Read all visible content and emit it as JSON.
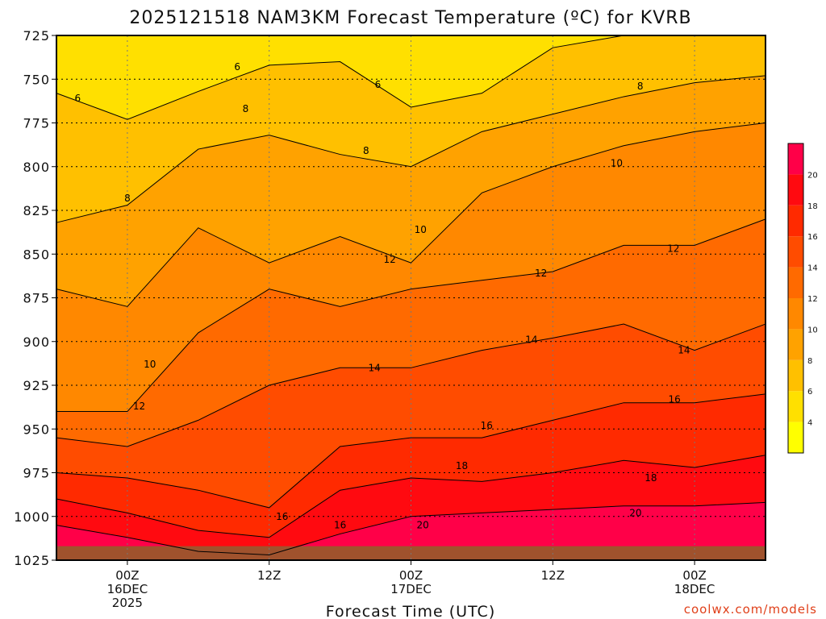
{
  "colors": {
    "band_2_4": "#ffff00",
    "band_4_6": "#ffe000",
    "band_6_8": "#ffc000",
    "band_8_10": "#ffa200",
    "band_10_12": "#ff8800",
    "band_12_14": "#ff6a00",
    "band_14_16": "#ff4c00",
    "band_16_18": "#ff2a00",
    "band_18_20": "#ff0a10",
    "band_20_22": "#ff0048",
    "ground": "#a0522d",
    "credit": "#e0401a"
  },
  "credit": "coolwx.com/models",
  "chart_data": {
    "type": "heatmap",
    "title": "2025121518 NAM3KM Forecast Temperature (ºC) for KVRB",
    "xlabel": "Forecast Time (UTC)",
    "ylabel": "",
    "x_unit": "hours from 2025-12-15 18Z",
    "xlim": [
      0,
      60
    ],
    "ylim": [
      1025,
      725
    ],
    "y_ticks": [
      "725",
      "750",
      "775",
      "800",
      "825",
      "850",
      "875",
      "900",
      "925",
      "950",
      "975",
      "1000",
      "1025"
    ],
    "x_ticks": [
      {
        "hour": 6,
        "lines": [
          "00Z",
          "16DEC",
          "2025"
        ]
      },
      {
        "hour": 18,
        "lines": [
          "12Z"
        ]
      },
      {
        "hour": 30,
        "lines": [
          "00Z",
          "17DEC"
        ]
      },
      {
        "hour": 42,
        "lines": [
          "12Z"
        ]
      },
      {
        "hour": 54,
        "lines": [
          "00Z",
          "18DEC"
        ]
      }
    ],
    "grid": true,
    "colorbar_ticks": [
      "4",
      "6",
      "8",
      "10",
      "12",
      "14",
      "16",
      "18",
      "20"
    ],
    "colorbar_range": [
      2,
      22
    ],
    "surface_pressure": 1017,
    "x": [
      0,
      6,
      12,
      18,
      24,
      30,
      36,
      42,
      48,
      54,
      60
    ],
    "contours": [
      {
        "level": 6,
        "pressure": [
          758,
          773,
          757,
          742,
          740,
          766,
          758,
          732,
          720,
          720,
          720
        ]
      },
      {
        "level": 8,
        "pressure": [
          832,
          822,
          790,
          782,
          793,
          800,
          780,
          770,
          760,
          752,
          748
        ]
      },
      {
        "level": 10,
        "pressure": [
          870,
          880,
          835,
          855,
          840,
          855,
          815,
          800,
          788,
          780,
          775
        ]
      },
      {
        "level": 12,
        "pressure": [
          940,
          940,
          895,
          870,
          880,
          870,
          865,
          860,
          845,
          845,
          830
        ]
      },
      {
        "level": 14,
        "pressure": [
          955,
          960,
          945,
          925,
          915,
          915,
          905,
          898,
          890,
          905,
          890
        ]
      },
      {
        "level": 16,
        "pressure": [
          975,
          978,
          985,
          995,
          960,
          955,
          955,
          945,
          935,
          935,
          930
        ]
      },
      {
        "level": 18,
        "pressure": [
          990,
          998,
          1008,
          1012,
          985,
          978,
          980,
          975,
          968,
          972,
          965
        ]
      },
      {
        "level": 20,
        "pressure": [
          1005,
          1012,
          1020,
          1022,
          1010,
          1000,
          998,
          996,
          994,
          994,
          992
        ]
      }
    ],
    "contour_labels": [
      {
        "text": "6",
        "x": 1.8,
        "y": 761
      },
      {
        "text": "6",
        "x": 15.3,
        "y": 743
      },
      {
        "text": "6",
        "x": 27.2,
        "y": 753
      },
      {
        "text": "8",
        "x": 16.0,
        "y": 767
      },
      {
        "text": "8",
        "x": 26.2,
        "y": 791
      },
      {
        "text": "8",
        "x": 49.4,
        "y": 754
      },
      {
        "text": "8",
        "x": 6.0,
        "y": 818
      },
      {
        "text": "10",
        "x": 30.8,
        "y": 836
      },
      {
        "text": "10",
        "x": 47.4,
        "y": 798
      },
      {
        "text": "10",
        "x": 7.9,
        "y": 913
      },
      {
        "text": "12",
        "x": 28.2,
        "y": 853
      },
      {
        "text": "12",
        "x": 41.0,
        "y": 861
      },
      {
        "text": "12",
        "x": 52.2,
        "y": 847
      },
      {
        "text": "12",
        "x": 7.0,
        "y": 937
      },
      {
        "text": "14",
        "x": 40.2,
        "y": 899
      },
      {
        "text": "14",
        "x": 26.9,
        "y": 915
      },
      {
        "text": "14",
        "x": 53.1,
        "y": 905
      },
      {
        "text": "16",
        "x": 52.3,
        "y": 933
      },
      {
        "text": "16",
        "x": 36.4,
        "y": 948
      },
      {
        "text": "16",
        "x": 19.1,
        "y": 1000
      },
      {
        "text": "16",
        "x": 24.0,
        "y": 1005
      },
      {
        "text": "18",
        "x": 34.3,
        "y": 971
      },
      {
        "text": "18",
        "x": 50.3,
        "y": 978
      },
      {
        "text": "20",
        "x": 49.0,
        "y": 998
      },
      {
        "text": "20",
        "x": 31.0,
        "y": 1005
      }
    ]
  }
}
